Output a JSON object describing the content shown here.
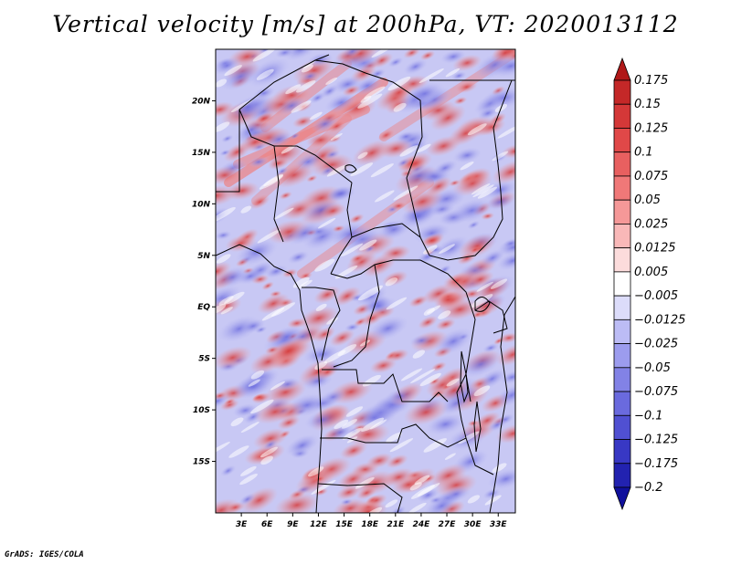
{
  "title": "Vertical velocity [m/s] at 200hPa, VT: 2020013112",
  "footer": "GrADS: IGES/COLA",
  "map": {
    "lon_labels": [
      "3E",
      "6E",
      "9E",
      "12E",
      "15E",
      "18E",
      "21E",
      "24E",
      "27E",
      "30E",
      "33E"
    ],
    "lat_labels": [
      "20N",
      "15N",
      "10N",
      "5N",
      "EQ",
      "5S",
      "10S",
      "15S"
    ],
    "lon_range": [
      0,
      35
    ],
    "lat_range": [
      -20,
      25
    ]
  },
  "colorbar": {
    "labels": [
      "0.175",
      "0.15",
      "0.125",
      "0.1",
      "0.075",
      "0.05",
      "0.025",
      "0.0125",
      "0.005",
      "−0.005",
      "−0.0125",
      "−0.025",
      "−0.05",
      "−0.075",
      "−0.1",
      "−0.125",
      "−0.175",
      "−0.2"
    ],
    "colors": [
      "#b01818",
      "#c42828",
      "#d43838",
      "#e04848",
      "#e86060",
      "#f07878",
      "#f59898",
      "#f9b8b8",
      "#fcdcdc",
      "#ffffff",
      "#dcdcfa",
      "#bcbcf5",
      "#9c9cee",
      "#8282e6",
      "#6a6ade",
      "#5050d2",
      "#3838c4",
      "#2222b0",
      "#10109c"
    ]
  }
}
